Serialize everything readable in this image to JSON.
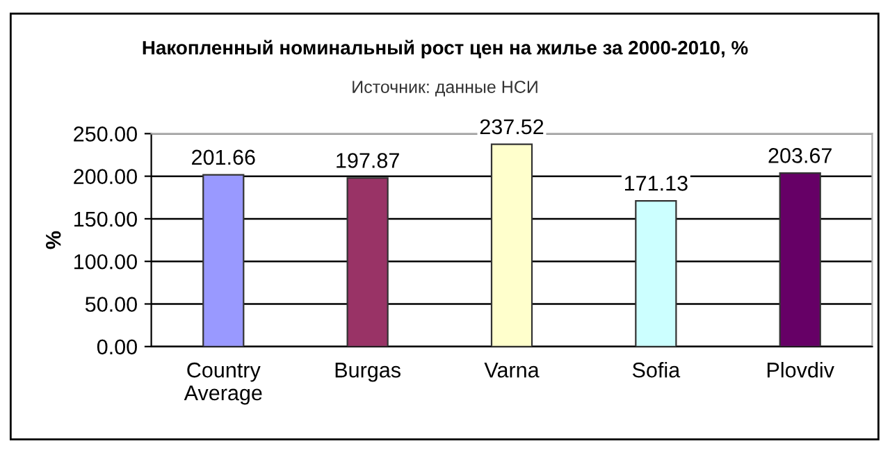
{
  "chart_data": {
    "type": "bar",
    "title": "Накопленный номинальный рост цен на жилье за 2000-2010, %",
    "subtitle": "Источник: данные НСИ",
    "ylabel": "%",
    "categories": [
      "Country\nAverage",
      "Burgas",
      "Varna",
      "Sofia",
      "Plovdiv"
    ],
    "values": [
      201.66,
      197.87,
      237.52,
      171.13,
      203.67
    ],
    "colors": [
      "#9999ff",
      "#993366",
      "#ffffcc",
      "#ccffff",
      "#660066"
    ],
    "value_labels": [
      "201.66",
      "197.87",
      "237.52",
      "171.13",
      "203.67"
    ],
    "ylim": [
      0,
      250
    ],
    "yticks": [
      {
        "value": 0,
        "label": "0.00"
      },
      {
        "value": 50,
        "label": "50.00"
      },
      {
        "value": 100,
        "label": "100.00"
      },
      {
        "value": 150,
        "label": "150.00"
      },
      {
        "value": 200,
        "label": "200.00"
      },
      {
        "value": 250,
        "label": "250.00"
      }
    ],
    "grid": "y",
    "legend": false
  }
}
